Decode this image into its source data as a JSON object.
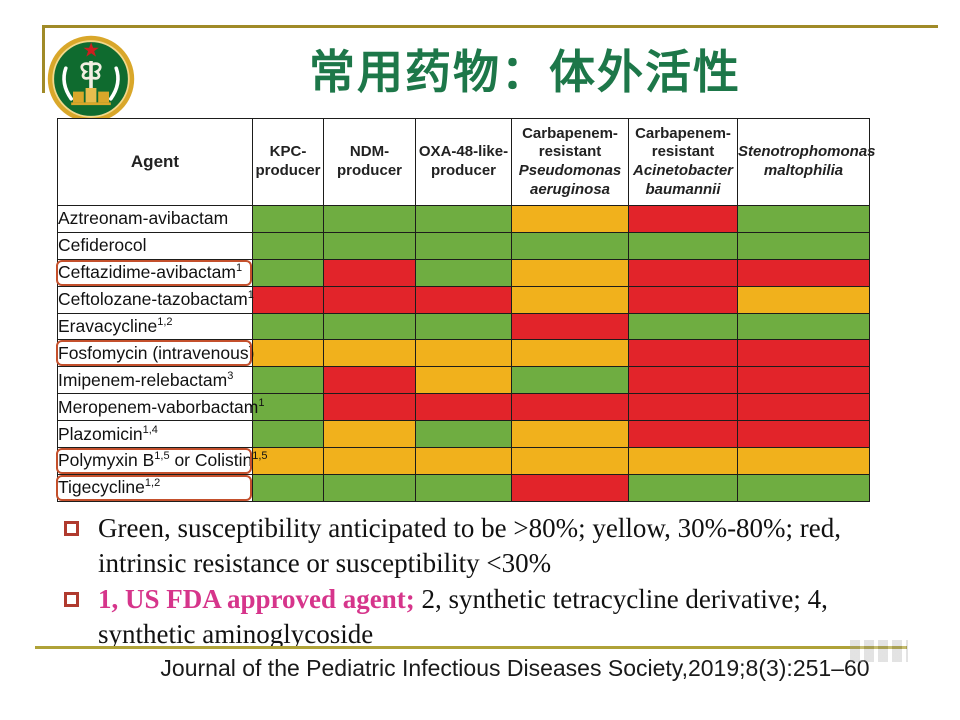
{
  "slide": {
    "title": "常用药物：体外活性",
    "logo_name": "hospital-emblem",
    "accent_colors": {
      "title_green": "#1d7749",
      "gold_line_top": "#a08a28",
      "gold_line_bottom": "#afa238",
      "callout_box": "#c4502c",
      "bullet_square": "#b03a2e",
      "fda_pink": "#d6358b"
    }
  },
  "table": {
    "columns": [
      {
        "text": "Agent"
      },
      {
        "text": "KPC-\nproducer"
      },
      {
        "text": "NDM-\nproducer"
      },
      {
        "text": "OXA-48-like-\nproducer"
      },
      {
        "text": "Carbapenem-\nresistant",
        "italic": "Pseudomonas\naeruginosa"
      },
      {
        "text": "Carbapenem-\nresistant",
        "italic": "Acinetobacter\nbaumannii"
      },
      {
        "italic": "Stenotrophomonas\nmaltophilia"
      }
    ],
    "cell_colors": {
      "G": "#6fad41",
      "Y": "#f1b11c",
      "R": "#e2242a"
    },
    "cell_meaning": {
      "G": "susceptibility anticipated >80%",
      "Y": "susceptibility 30%-80%",
      "R": "intrinsic resistance or susceptibility <30%"
    },
    "rows": [
      {
        "parts": [
          {
            "t": "Aztreonam-avibactam"
          }
        ],
        "boxed": false,
        "cells": [
          "G",
          "G",
          "G",
          "Y",
          "R",
          "G"
        ]
      },
      {
        "parts": [
          {
            "t": "Cefiderocol"
          }
        ],
        "boxed": false,
        "cells": [
          "G",
          "G",
          "G",
          "G",
          "G",
          "G"
        ]
      },
      {
        "parts": [
          {
            "t": "Ceftazidime-avibactam",
            "sup": "1"
          }
        ],
        "boxed": true,
        "cells": [
          "G",
          "R",
          "G",
          "Y",
          "R",
          "R"
        ]
      },
      {
        "parts": [
          {
            "t": "Ceftolozane-tazobactam",
            "sup": "1"
          }
        ],
        "boxed": false,
        "cells": [
          "R",
          "R",
          "R",
          "Y",
          "R",
          "Y"
        ]
      },
      {
        "parts": [
          {
            "t": "Eravacycline",
            "sup": "1,2"
          }
        ],
        "boxed": false,
        "cells": [
          "G",
          "G",
          "G",
          "R",
          "G",
          "G"
        ]
      },
      {
        "parts": [
          {
            "t": "Fosfomycin (intravenous)"
          }
        ],
        "boxed": true,
        "cells": [
          "Y",
          "Y",
          "Y",
          "Y",
          "R",
          "R"
        ]
      },
      {
        "parts": [
          {
            "t": "Imipenem-relebactam",
            "sup": "3"
          }
        ],
        "boxed": false,
        "cells": [
          "G",
          "R",
          "Y",
          "G",
          "R",
          "R"
        ]
      },
      {
        "parts": [
          {
            "t": "Meropenem-vaborbactam",
            "sup": "1"
          }
        ],
        "boxed": false,
        "cells": [
          "G",
          "R",
          "R",
          "R",
          "R",
          "R"
        ]
      },
      {
        "parts": [
          {
            "t": "Plazomicin",
            "sup": "1,4"
          }
        ],
        "boxed": false,
        "cells": [
          "G",
          "Y",
          "G",
          "Y",
          "R",
          "R"
        ]
      },
      {
        "parts": [
          {
            "t": "Polymyxin B",
            "sup": "1,5"
          },
          {
            "t": " or Colistin",
            "sup": "1,5"
          }
        ],
        "boxed": true,
        "cells": [
          "Y",
          "Y",
          "Y",
          "Y",
          "Y",
          "Y"
        ]
      },
      {
        "parts": [
          {
            "t": "Tigecycline",
            "sup": "1,2"
          }
        ],
        "boxed": true,
        "cells": [
          "G",
          "G",
          "G",
          "R",
          "G",
          "G"
        ]
      }
    ]
  },
  "bullets": [
    {
      "segments": [
        {
          "style": "normal",
          "text": "Green, susceptibility anticipated to be >80%; yellow, 30%-80%; red, intrinsic resistance or susceptibility <30%"
        }
      ]
    },
    {
      "segments": [
        {
          "style": "pink",
          "text": "1, US FDA approved agent;"
        },
        {
          "style": "normal",
          "text": " 2, synthetic tetracycline derivative; 4, synthetic aminoglycoside"
        }
      ]
    }
  ],
  "footer": {
    "citation": "Journal of the Pediatric Infectious Diseases Society,2019;8(3):251–60"
  }
}
